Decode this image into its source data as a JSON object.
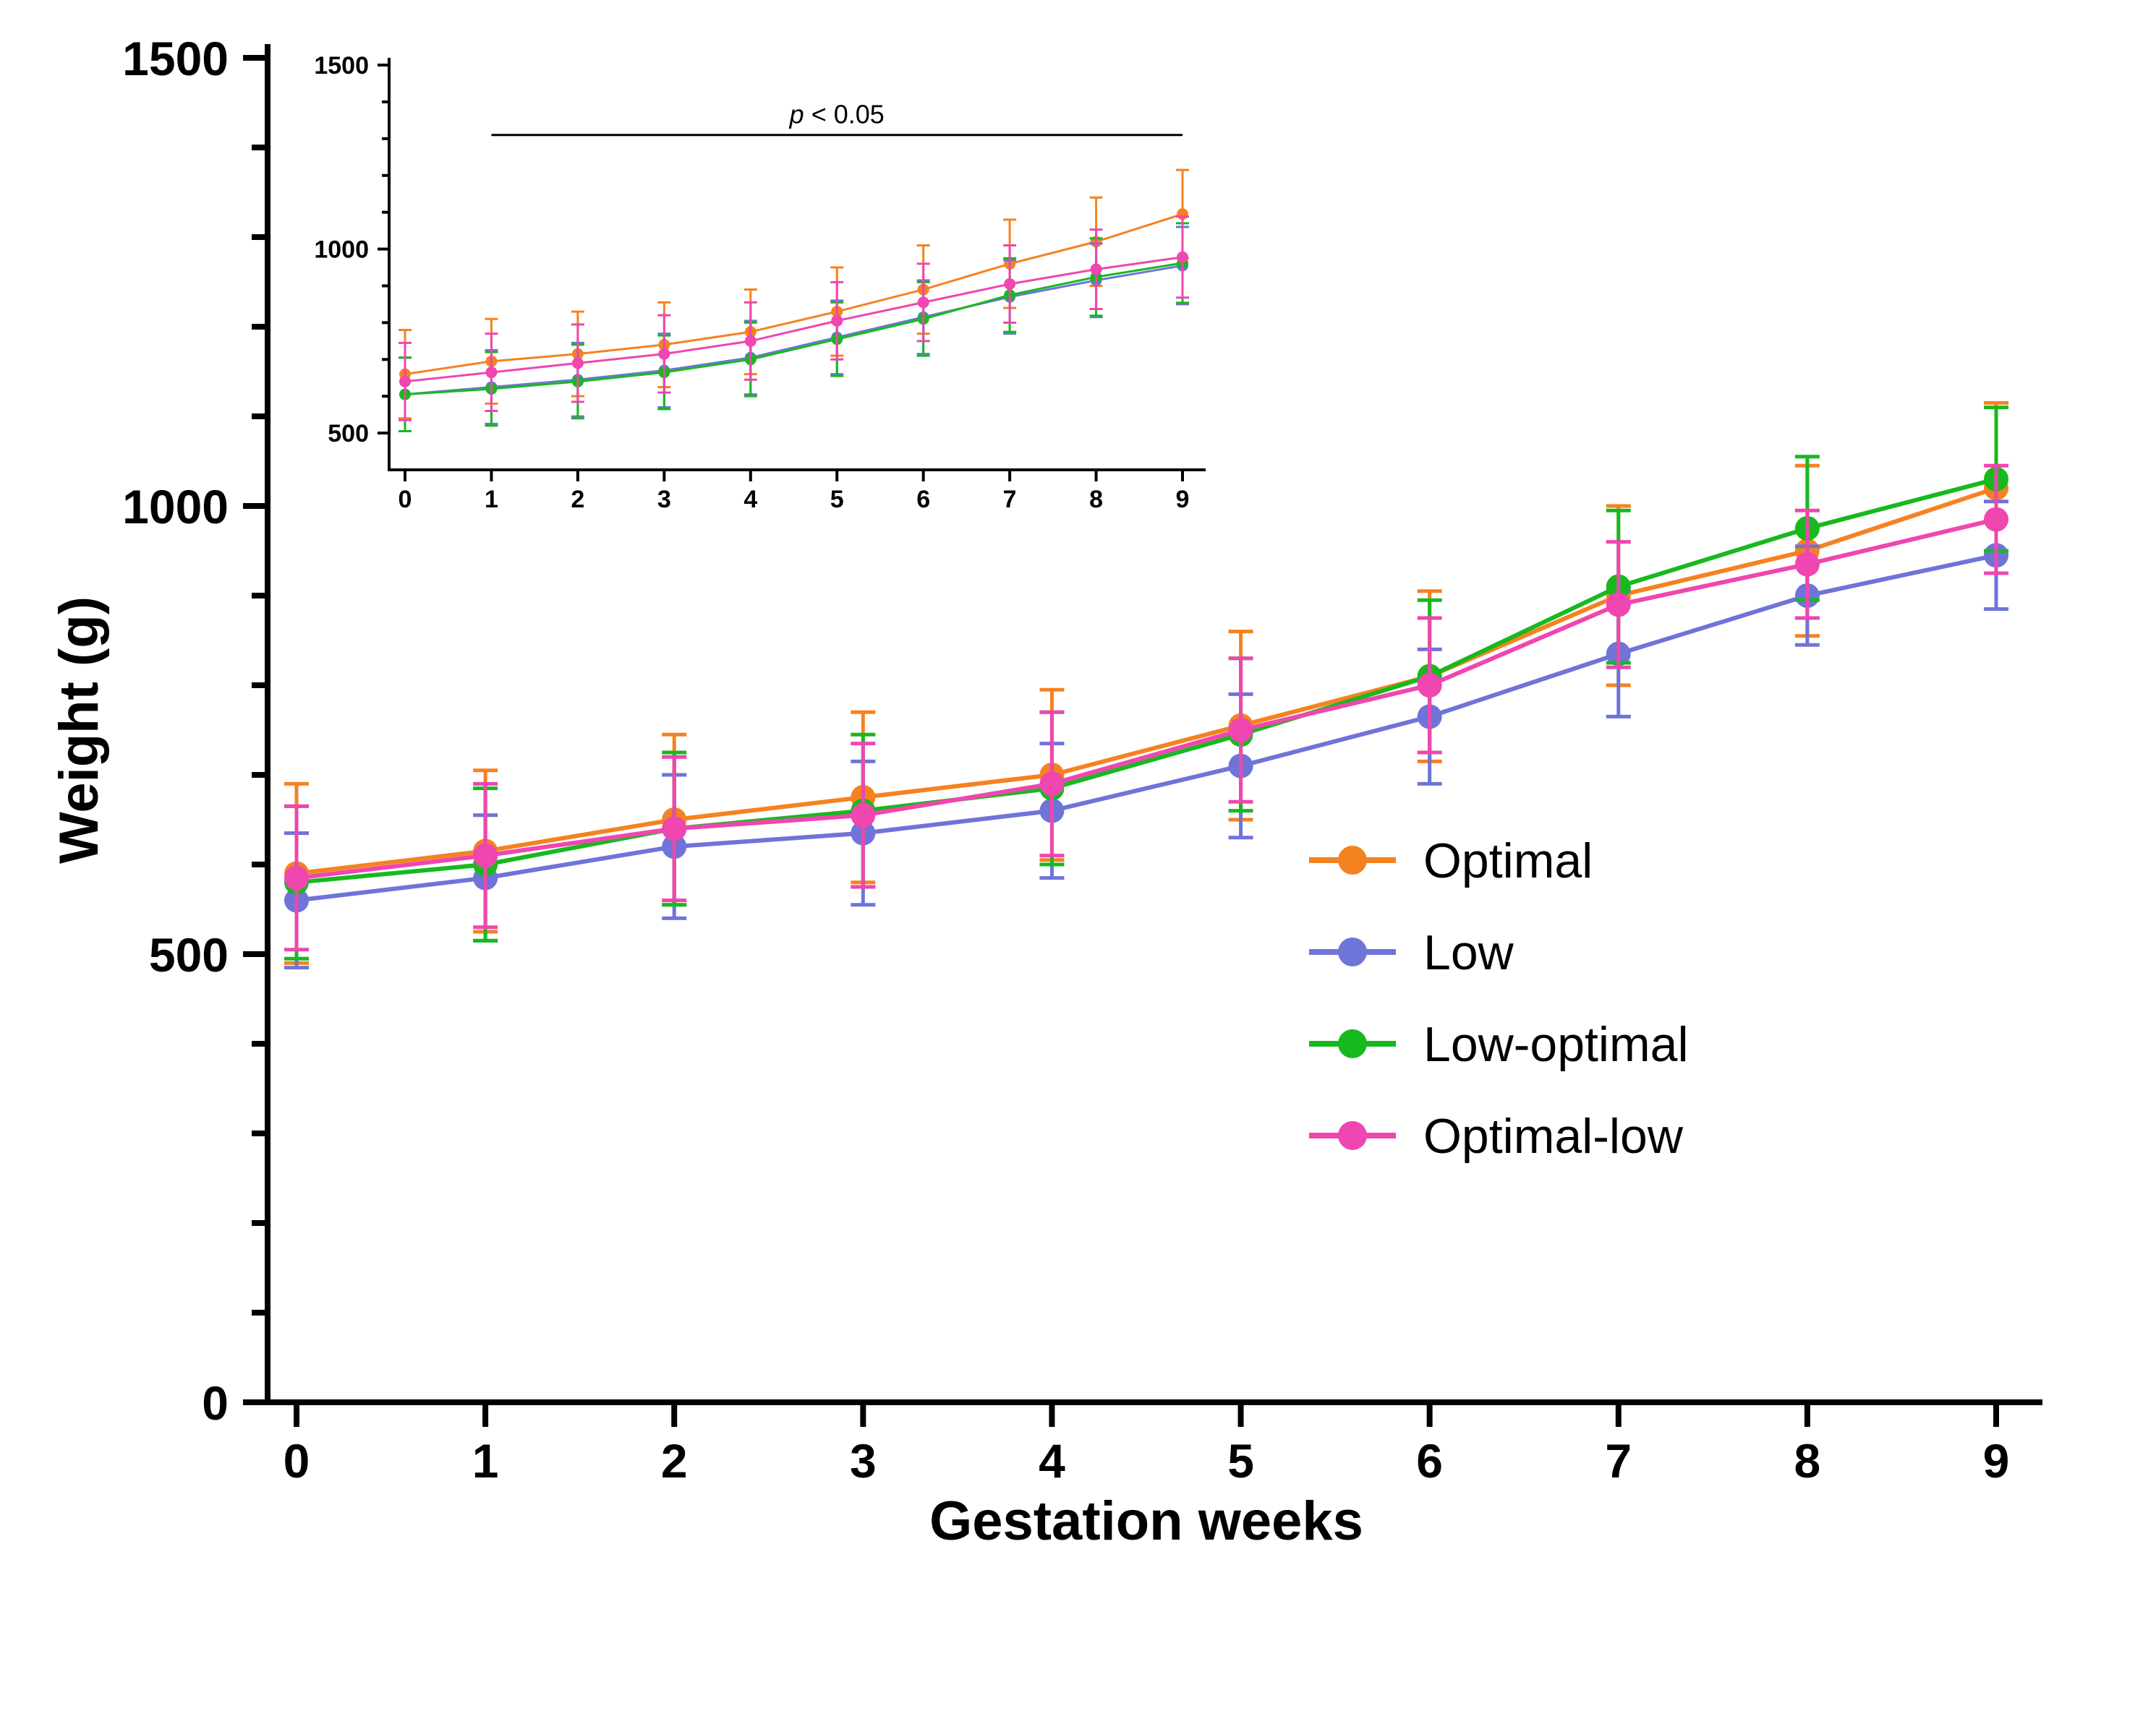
{
  "chart": {
    "type": "line",
    "background_color": "#ffffff",
    "axis_color": "#000000",
    "axis_linewidth": 8,
    "tick_linewidth": 8,
    "tick_length_main": 34,
    "tick_length_minor": 22,
    "marker_radius": 17,
    "errorbar_linewidth": 5,
    "errorbar_cap_halfwidth": 17,
    "line_width": 6,
    "x_axis": {
      "label": "Gestation weeks",
      "min": 0,
      "max": 9,
      "ticks": [
        0,
        1,
        2,
        3,
        4,
        5,
        6,
        7,
        8,
        9
      ]
    },
    "y_axis": {
      "label": "Weight (g)",
      "min": 0,
      "max": 1500,
      "major_ticks": [
        0,
        500,
        1000,
        1500
      ],
      "minor_ticks": [
        100,
        200,
        300,
        400,
        600,
        700,
        800,
        900,
        1100,
        1200,
        1300,
        1400
      ]
    },
    "series": [
      {
        "name": "Optimal",
        "color": "#f58220",
        "x": [
          0,
          1,
          2,
          3,
          4,
          5,
          6,
          7,
          8,
          9
        ],
        "y": [
          590,
          615,
          650,
          675,
          700,
          755,
          810,
          900,
          950,
          1020
        ],
        "err": [
          100,
          90,
          95,
          95,
          95,
          105,
          95,
          100,
          95,
          95
        ]
      },
      {
        "name": "Low",
        "color": "#6e74d8",
        "x": [
          0,
          1,
          2,
          3,
          4,
          5,
          6,
          7,
          8,
          9
        ],
        "y": [
          560,
          585,
          620,
          635,
          660,
          710,
          765,
          835,
          900,
          945
        ],
        "err": [
          75,
          70,
          80,
          80,
          75,
          80,
          75,
          70,
          55,
          60
        ]
      },
      {
        "name": "Low-optimal",
        "color": "#17b91f",
        "x": [
          0,
          1,
          2,
          3,
          4,
          5,
          6,
          7,
          8,
          9
        ],
        "y": [
          580,
          600,
          640,
          660,
          685,
          745,
          810,
          910,
          975,
          1030
        ],
        "err": [
          85,
          85,
          85,
          85,
          85,
          85,
          85,
          85,
          80,
          80
        ]
      },
      {
        "name": "Optimal-low",
        "color": "#ef46af",
        "x": [
          0,
          1,
          2,
          3,
          4,
          5,
          6,
          7,
          8,
          9
        ],
        "y": [
          585,
          610,
          640,
          655,
          690,
          750,
          800,
          890,
          935,
          985
        ],
        "err": [
          80,
          80,
          80,
          80,
          80,
          80,
          75,
          70,
          60,
          60
        ]
      }
    ],
    "legend": {
      "items": [
        "Optimal",
        "Low",
        "Low-optimal",
        "Optimal-low"
      ],
      "marker_radius": 20,
      "line_halflength": 60
    },
    "inset": {
      "background": "#ffffff",
      "axis_color": "#000000",
      "axis_linewidth": 4,
      "tick_linewidth": 4,
      "tick_length_main": 16,
      "tick_length_minor": 10,
      "marker_radius": 8,
      "errorbar_linewidth": 3,
      "errorbar_cap_halfwidth": 9,
      "line_width": 3,
      "x_axis": {
        "min": 0,
        "max": 9,
        "ticks": [
          0,
          1,
          2,
          3,
          4,
          5,
          6,
          7,
          8,
          9
        ]
      },
      "y_axis": {
        "min": 400,
        "max": 1500,
        "major_ticks": [
          500,
          1000,
          1500
        ]
      },
      "annotation": {
        "p_italic": "p",
        "p_rest": " < 0.05",
        "bar_x0": 1,
        "bar_x1": 9,
        "bar_y": 1310,
        "line_width": 3
      },
      "series": [
        {
          "name": "Optimal",
          "color": "#f58220",
          "x": [
            0,
            1,
            2,
            3,
            4,
            5,
            6,
            7,
            8,
            9
          ],
          "y": [
            660,
            695,
            715,
            740,
            775,
            830,
            890,
            960,
            1020,
            1095
          ],
          "err": [
            120,
            115,
            115,
            115,
            115,
            120,
            120,
            120,
            120,
            120
          ]
        },
        {
          "name": "Low",
          "color": "#6e74d8",
          "x": [
            0,
            1,
            2,
            3,
            4,
            5,
            6,
            7,
            8,
            9
          ],
          "y": [
            605,
            625,
            645,
            670,
            705,
            760,
            815,
            870,
            915,
            955
          ],
          "err": [
            100,
            100,
            100,
            100,
            100,
            100,
            100,
            100,
            100,
            105
          ]
        },
        {
          "name": "Low-optimal",
          "color": "#17b91f",
          "x": [
            0,
            1,
            2,
            3,
            4,
            5,
            6,
            7,
            8,
            9
          ],
          "y": [
            605,
            620,
            640,
            665,
            700,
            755,
            810,
            875,
            924,
            962
          ],
          "err": [
            100,
            100,
            100,
            100,
            100,
            100,
            100,
            100,
            105,
            108
          ]
        },
        {
          "name": "Optimal-low",
          "color": "#ef46af",
          "x": [
            0,
            1,
            2,
            3,
            4,
            5,
            6,
            7,
            8,
            9
          ],
          "y": [
            640,
            665,
            690,
            715,
            750,
            805,
            855,
            905,
            945,
            978
          ],
          "err": [
            105,
            105,
            105,
            105,
            105,
            105,
            105,
            105,
            108,
            110
          ]
        }
      ]
    }
  }
}
